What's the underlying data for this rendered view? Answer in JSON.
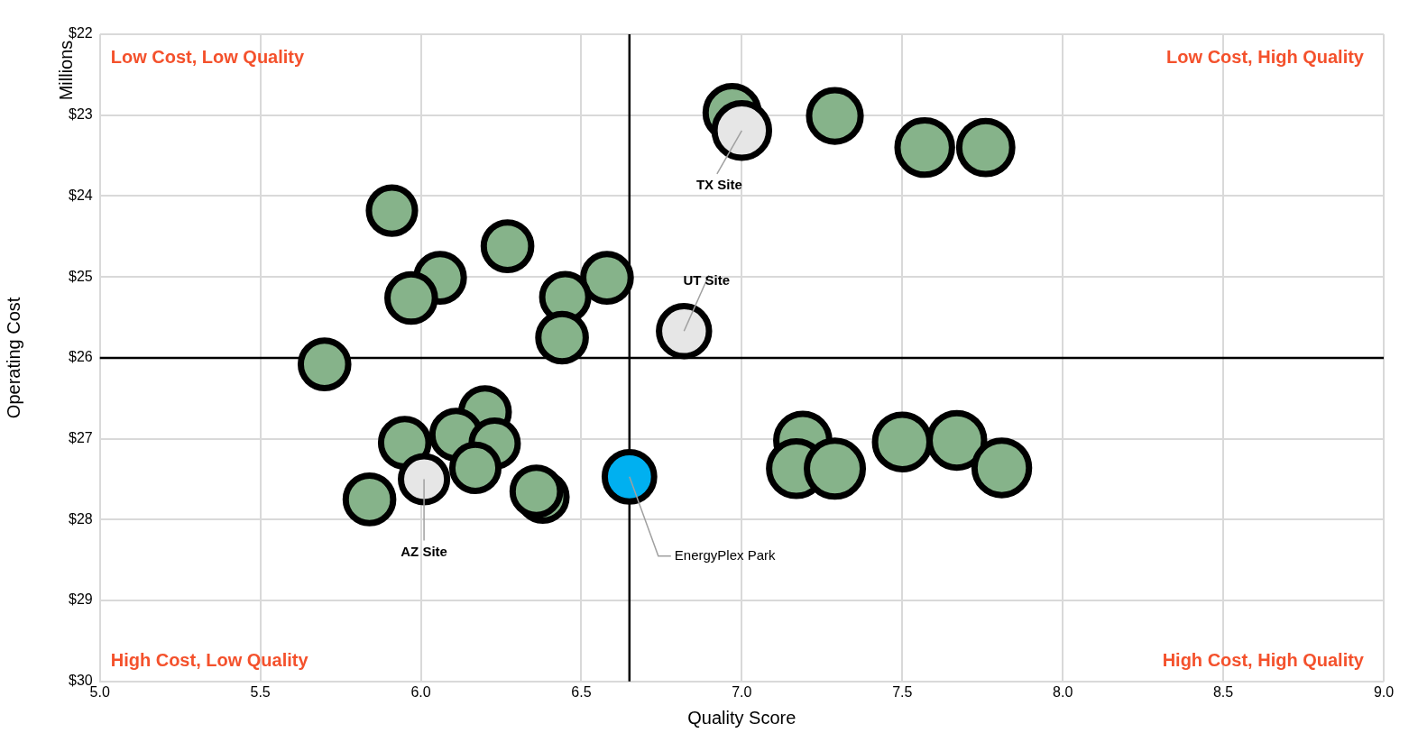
{
  "chart_data": {
    "type": "bubble",
    "xlabel": "Quality Score",
    "ylabel": "Operating Cost",
    "xlim": [
      5.0,
      9.0
    ],
    "xticks": [
      {
        "value": 5,
        "label": "5.0"
      },
      {
        "value": 5.5,
        "label": "5.5"
      },
      {
        "value": 6,
        "label": "6.0"
      },
      {
        "value": 6.5,
        "label": "6.5"
      },
      {
        "value": 7,
        "label": "7.0"
      },
      {
        "value": 7.5,
        "label": "7.5"
      },
      {
        "value": 8,
        "label": "8.0"
      },
      {
        "value": 8.5,
        "label": "8.5"
      },
      {
        "value": 9,
        "label": "9.0"
      }
    ],
    "ylim": [
      30,
      22
    ],
    "yticks": [
      {
        "value": 22,
        "label": "$22"
      },
      {
        "value": 23,
        "label": "$23"
      },
      {
        "value": 24,
        "label": "$24"
      },
      {
        "value": 25,
        "label": "$25"
      },
      {
        "value": 26,
        "label": "$26"
      },
      {
        "value": 27,
        "label": "$27"
      },
      {
        "value": 28,
        "label": "$28"
      },
      {
        "value": 29,
        "label": "$29"
      },
      {
        "value": 30,
        "label": "$30"
      }
    ],
    "grid": true,
    "legend": false,
    "relative": false,
    "series": [
      {
        "color": "#86b38a",
        "x": [
          5.91,
          6.27,
          6.06,
          5.97,
          6.58,
          6.45,
          6.44,
          5.7,
          6.2,
          6.11,
          5.95,
          6.23,
          6.17,
          5.84,
          6.38,
          6.36,
          6.97,
          7.29,
          7.57,
          7.76,
          7.19,
          7.17,
          7.29,
          7.5,
          7.67,
          7.81
        ],
        "values": [
          24.18,
          24.62,
          25.01,
          25.26,
          25.01,
          25.25,
          25.75,
          26.08,
          26.67,
          26.95,
          27.05,
          27.06,
          27.36,
          27.75,
          27.72,
          27.65,
          22.97,
          23.01,
          23.4,
          23.4,
          27.02,
          27.37,
          27.37,
          27.04,
          27.02,
          27.36
        ],
        "sizes": [
          0.68,
          0.72,
          0.72,
          0.72,
          0.72,
          0.68,
          0.72,
          0.72,
          0.72,
          0.72,
          0.72,
          0.68,
          0.68,
          0.72,
          0.72,
          0.72,
          0.9,
          0.85,
          0.95,
          0.9,
          0.9,
          0.95,
          1,
          0.95,
          0.95,
          0.95
        ]
      },
      {
        "color": "#e6e6e6",
        "x": [
          7.0,
          6.82,
          6.01
        ],
        "values": [
          23.19,
          25.67,
          27.5
        ],
        "sizes": [
          0.95,
          0.8,
          0.68
        ]
      },
      {
        "color": "#00b0f0",
        "x": [
          6.65
        ],
        "values": [
          27.47
        ],
        "sizes": [
          0.78
        ]
      }
    ],
    "ref_lines": [
      {
        "axis": "x",
        "value": 6.65,
        "color": "#000000"
      },
      {
        "axis": "y",
        "value": 26,
        "color": "#000000"
      }
    ],
    "annotations": [
      "Millions",
      "Low Cost, Low Quality",
      "Low Cost, High Quality",
      "High Cost, Low Quality",
      "High Cost, High Quality",
      {
        "text": "TX Site",
        "x": 7.0,
        "y": 23.19
      },
      {
        "text": "UT Site",
        "x": 6.82,
        "y": 25.67
      },
      {
        "text": "AZ Site",
        "x": 6.01,
        "y": 27.5
      },
      {
        "text": "EnergyPlex Park",
        "x": 6.65,
        "y": 27.47
      }
    ]
  }
}
